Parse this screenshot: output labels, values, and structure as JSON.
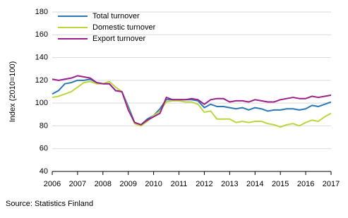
{
  "chart_data": {
    "type": "line",
    "y_label": "Index (2010=100)",
    "source": "Source: Statistics Finland",
    "x": [
      2006,
      2006.25,
      2006.5,
      2006.75,
      2007,
      2007.25,
      2007.5,
      2007.75,
      2008,
      2008.25,
      2008.5,
      2008.75,
      2009,
      2009.25,
      2009.5,
      2009.75,
      2010,
      2010.25,
      2010.5,
      2010.75,
      2011,
      2011.25,
      2011.5,
      2011.75,
      2012,
      2012.25,
      2012.5,
      2012.75,
      2013,
      2013.25,
      2013.5,
      2013.75,
      2014,
      2014.25,
      2014.5,
      2014.75,
      2015,
      2015.25,
      2015.5,
      2015.75,
      2016,
      2016.25,
      2016.5,
      2016.75,
      2017
    ],
    "series": [
      {
        "name": "Total turnover",
        "color": "#2a78b8",
        "values": [
          108,
          111,
          117,
          118,
          120,
          120,
          121,
          118,
          117,
          117,
          111,
          110,
          97,
          83,
          81,
          86,
          89,
          95,
          103,
          103,
          103,
          103,
          103,
          102,
          96,
          99,
          97,
          97,
          96,
          95,
          96,
          94,
          96,
          95,
          93,
          94,
          94,
          95,
          95,
          94,
          95,
          98,
          97,
          99,
          101
        ]
      },
      {
        "name": "Domestic turnover",
        "color": "#bcd63c",
        "values": [
          105,
          106,
          108,
          110,
          114,
          118,
          119,
          117,
          117,
          119,
          114,
          110,
          95,
          82,
          80,
          84,
          89,
          93,
          101,
          102,
          102,
          101,
          101,
          99,
          92,
          93,
          86,
          86,
          86,
          83,
          84,
          83,
          84,
          84,
          82,
          81,
          79,
          81,
          82,
          80,
          83,
          85,
          84,
          88,
          91
        ]
      },
      {
        "name": "Export turnover",
        "color": "#9c1f8a",
        "values": [
          121,
          120,
          121,
          122,
          124,
          123,
          122,
          118,
          117,
          117,
          111,
          110,
          94,
          83,
          81,
          85,
          88,
          91,
          105,
          103,
          103,
          103,
          104,
          103,
          99,
          103,
          104,
          104,
          101,
          102,
          102,
          101,
          103,
          102,
          101,
          101,
          103,
          104,
          105,
          104,
          104,
          106,
          105,
          106,
          107
        ]
      }
    ],
    "xlim": [
      2006,
      2017
    ],
    "xticks": [
      2006,
      2007,
      2008,
      2009,
      2010,
      2011,
      2012,
      2013,
      2014,
      2015,
      2016,
      2017
    ],
    "ylim": [
      40,
      180
    ],
    "yticks": [
      40,
      60,
      80,
      100,
      120,
      140,
      160,
      180
    ],
    "grid": true,
    "legend": "top-left"
  }
}
